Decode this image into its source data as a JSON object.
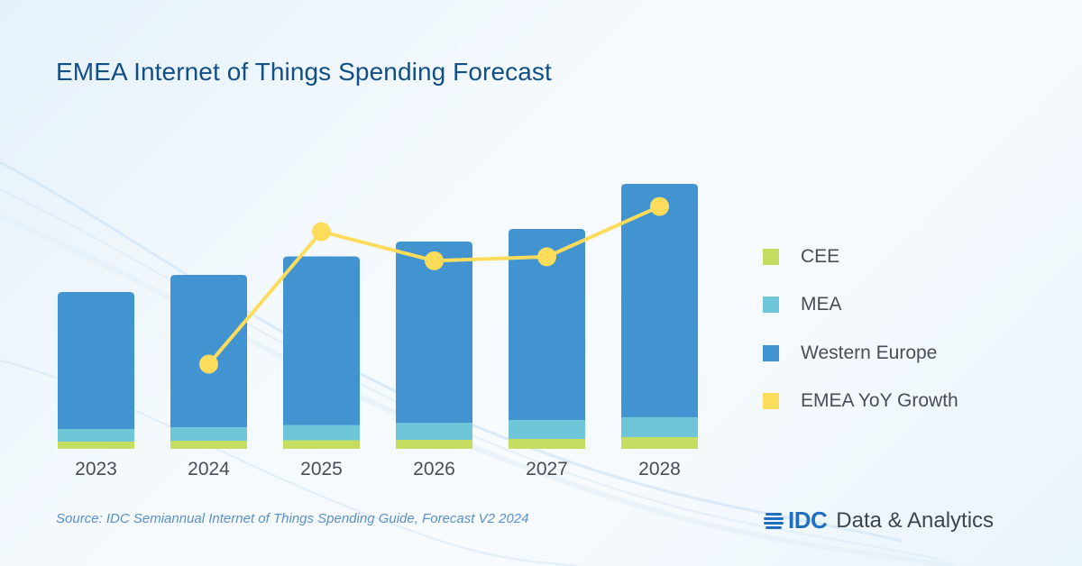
{
  "title": "EMEA Internet of Things Spending Forecast",
  "source": "Source: IDC Semiannual Internet of Things Spending Guide, Forecast V2 2024",
  "brand": {
    "logo_text": "IDC",
    "tagline": "Data & Analytics",
    "logo_icon": "idc-globe-icon"
  },
  "colors": {
    "cee": "#c5dd60",
    "mea": "#6fc6d8",
    "western_europe": "#4294d0",
    "growth": "#fddc5c",
    "title": "#124f86"
  },
  "chart_data": {
    "type": "bar",
    "stacked": true,
    "title": "EMEA Internet of Things Spending Forecast",
    "xlabel": "",
    "ylabel": "",
    "units_note": "No value axis is shown; bar values are segment heights measured in pixels from the baseline (relative proportions, not actual spending amounts). Growth values are normalized relative heights, not actual percentages.",
    "categories": [
      "2023",
      "2024",
      "2025",
      "2026",
      "2027",
      "2028"
    ],
    "series": [
      {
        "name": "CEE",
        "color": "#c5dd60",
        "values": [
          8,
          9,
          9.5,
          10,
          11,
          13
        ]
      },
      {
        "name": "MEA",
        "color": "#6fc6d8",
        "values": [
          14,
          15,
          17,
          19,
          21,
          22
        ]
      },
      {
        "name": "Western Europe",
        "color": "#4294d0",
        "values": [
          152,
          169,
          187,
          201,
          212,
          259
        ]
      }
    ],
    "line_series": {
      "name": "EMEA YoY Growth",
      "color": "#fddc5c",
      "values": [
        null,
        0.0,
        1.0,
        0.78,
        0.81,
        1.19
      ],
      "value_scale": "relative (2024=0, 2025=1)"
    },
    "legend": [
      "CEE",
      "MEA",
      "Western Europe",
      "EMEA YoY Growth"
    ],
    "legend_position": "right",
    "grid": false
  }
}
